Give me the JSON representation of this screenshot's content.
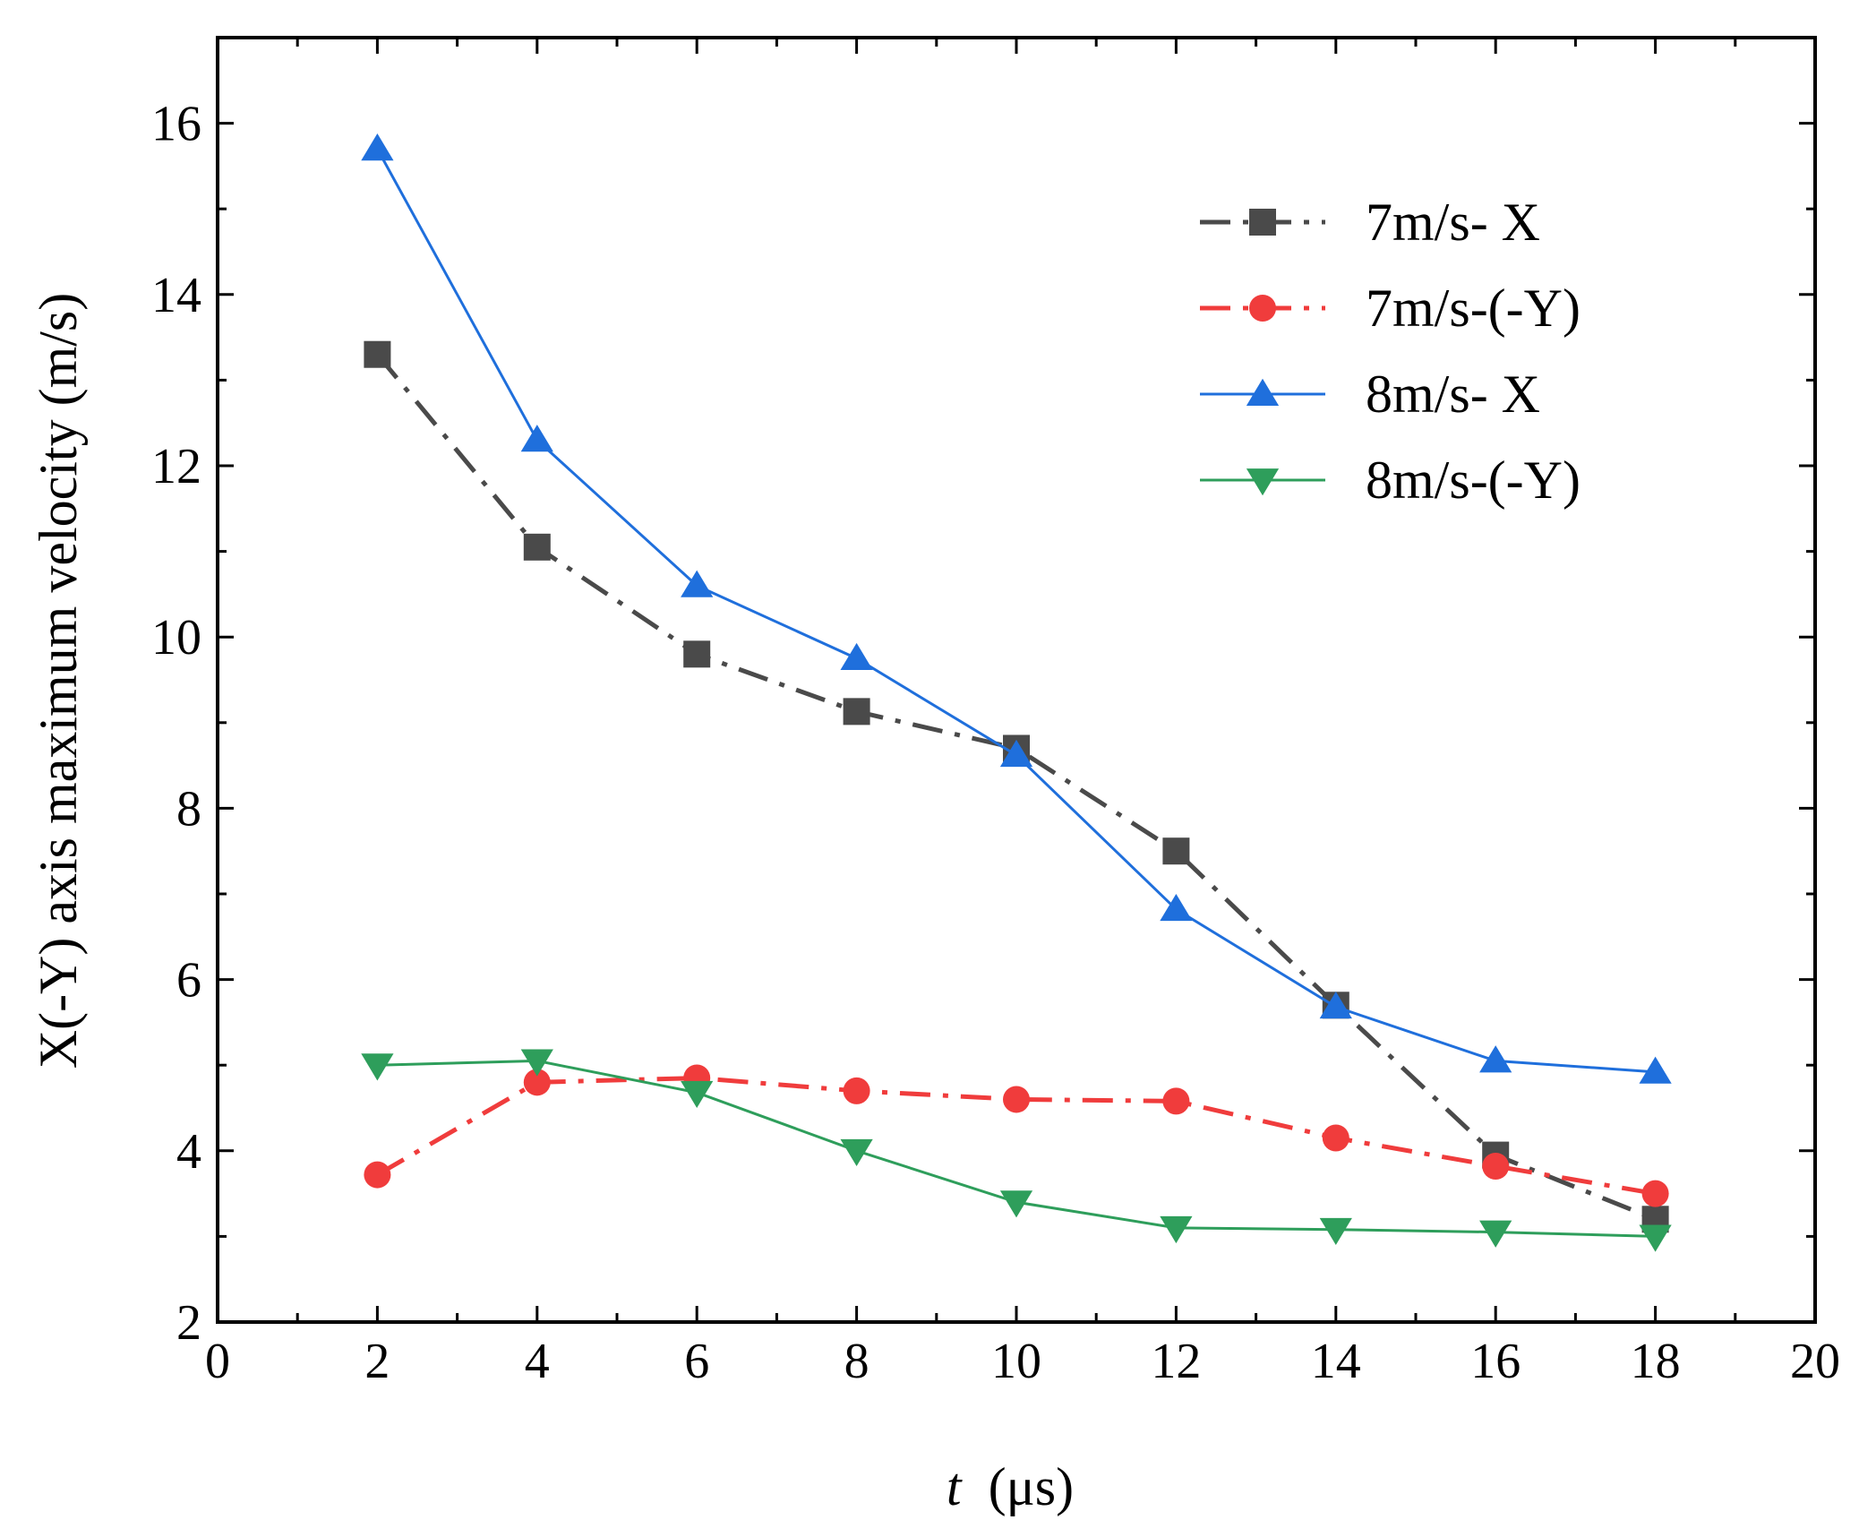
{
  "chart_data": {
    "type": "line",
    "title": "",
    "xlabel_var": "t",
    "xlabel_unit": "  (μs)",
    "ylabel": "X(-Y) axis maximum velocity  (m/s)",
    "xlim": [
      0,
      20
    ],
    "ylim": [
      2,
      17
    ],
    "x_ticks": [
      0,
      2,
      4,
      6,
      8,
      10,
      12,
      14,
      16,
      18,
      20
    ],
    "y_ticks": [
      2,
      4,
      6,
      8,
      10,
      12,
      14,
      16
    ],
    "grid": false,
    "legend_position": "top-right",
    "x": [
      2,
      4,
      6,
      8,
      10,
      12,
      14,
      16,
      18
    ],
    "series": [
      {
        "name": "7m/s- X",
        "color": "#4a4a4a",
        "marker": "square",
        "line_style": "dash-dot",
        "values": [
          13.3,
          11.05,
          9.8,
          9.13,
          8.7,
          7.5,
          5.7,
          3.95,
          3.2
        ]
      },
      {
        "name": "7m/s-(-Y)",
        "color": "#f03c3c",
        "marker": "circle",
        "line_style": "dash-dot",
        "values": [
          3.72,
          4.8,
          4.85,
          4.7,
          4.6,
          4.58,
          4.15,
          3.82,
          3.5
        ]
      },
      {
        "name": "8m/s- X",
        "color": "#1f6fdc",
        "marker": "triangle-up",
        "line_style": "solid",
        "values": [
          15.7,
          12.3,
          10.6,
          9.75,
          8.62,
          6.82,
          5.68,
          5.05,
          4.92
        ]
      },
      {
        "name": "8m/s-(-Y)",
        "color": "#2e9e5b",
        "marker": "triangle-down",
        "line_style": "solid",
        "values": [
          5.0,
          5.05,
          4.68,
          4.0,
          3.4,
          3.1,
          3.08,
          3.05,
          3.0
        ]
      }
    ]
  }
}
